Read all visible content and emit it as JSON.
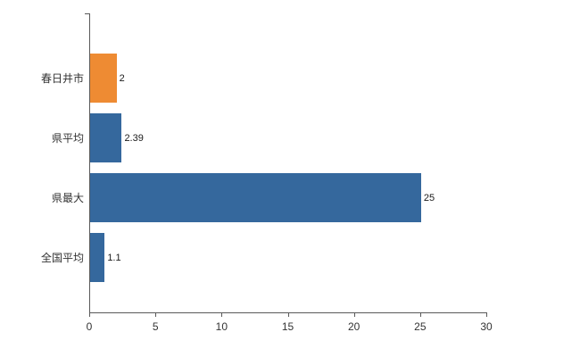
{
  "chart_data": {
    "type": "bar",
    "orientation": "horizontal",
    "title": "",
    "xlabel": "",
    "ylabel": "",
    "categories": [
      "春日井市",
      "県平均",
      "県最大",
      "全国平均"
    ],
    "values": [
      2,
      2.39,
      25,
      1.1
    ],
    "value_labels": [
      "2",
      "2.39",
      "25",
      "1.1"
    ],
    "bar_colors": [
      "#EE8B33",
      "#35689D",
      "#35689D",
      "#35689D"
    ],
    "xlim": [
      0,
      30
    ],
    "x_ticks": [
      "0",
      "5",
      "10",
      "15",
      "20",
      "25",
      "30"
    ],
    "grid": false,
    "legend": false,
    "background": "#FFFFFF"
  },
  "colors": {
    "bar_blue": "#35689D",
    "bar_orange": "#EE8B33",
    "axis": "#595959",
    "text": "#333333",
    "background": "#FFFFFF"
  }
}
